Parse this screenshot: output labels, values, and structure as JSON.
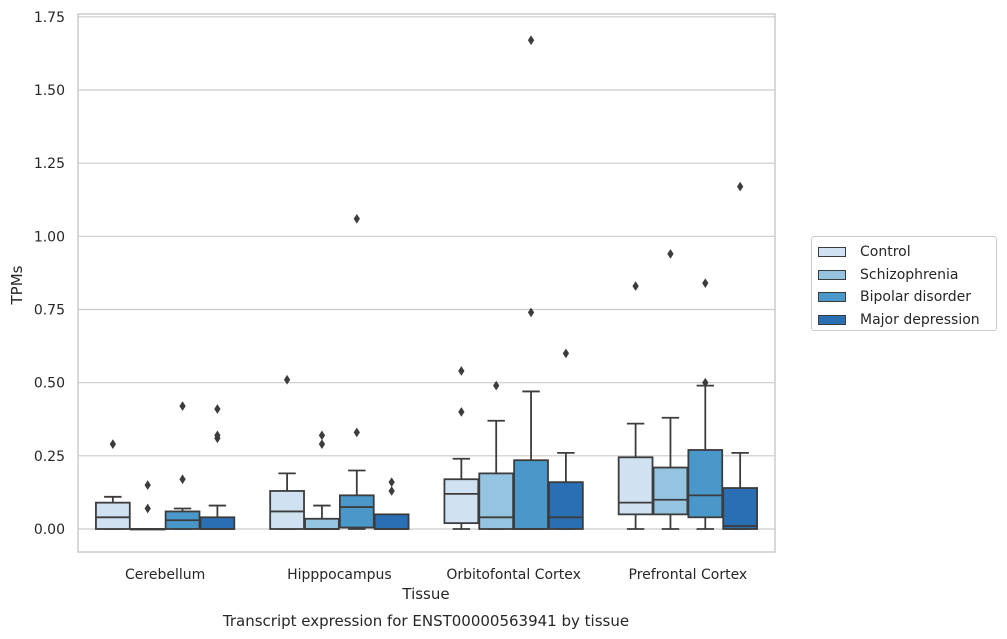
{
  "chart_data": {
    "type": "box",
    "title": "",
    "xlabel": "Tissue",
    "ylabel": "TPMs",
    "caption": "Transcript expression for ENST00000563941 by tissue",
    "categories": [
      "Cerebellum",
      "Hipppocampus",
      "Orbitofontal Cortex",
      "Prefrontal Cortex"
    ],
    "ylim": [
      -0.08,
      1.75
    ],
    "yticks": [
      0.0,
      0.25,
      0.5,
      0.75,
      1.0,
      1.25,
      1.5,
      1.75
    ],
    "ytick_labels": [
      "0.00",
      "0.25",
      "0.50",
      "0.75",
      "1.00",
      "1.25",
      "1.50",
      "1.75"
    ],
    "grid": true,
    "legend_position": "right",
    "series": [
      {
        "name": "Control",
        "color": "#d0e1f2",
        "boxes": [
          {
            "whisker_low": 0.0,
            "q1": 0.0,
            "median": 0.04,
            "q3": 0.09,
            "whisker_high": 0.11,
            "outliers": [
              0.29
            ]
          },
          {
            "whisker_low": 0.0,
            "q1": 0.0,
            "median": 0.06,
            "q3": 0.13,
            "whisker_high": 0.19,
            "outliers": [
              0.51
            ]
          },
          {
            "whisker_low": 0.0,
            "q1": 0.02,
            "median": 0.12,
            "q3": 0.17,
            "whisker_high": 0.24,
            "outliers": [
              0.4,
              0.54
            ]
          },
          {
            "whisker_low": 0.0,
            "q1": 0.05,
            "median": 0.09,
            "q3": 0.245,
            "whisker_high": 0.36,
            "outliers": [
              0.83
            ]
          }
        ]
      },
      {
        "name": "Schizophrenia",
        "color": "#94c4df",
        "boxes": [
          {
            "whisker_low": 0.0,
            "q1": 0.0,
            "median": 0.0,
            "q3": 0.0,
            "whisker_high": 0.0,
            "outliers": [
              0.07,
              0.15
            ]
          },
          {
            "whisker_low": 0.0,
            "q1": 0.0,
            "median": 0.0,
            "q3": 0.035,
            "whisker_high": 0.08,
            "outliers": [
              0.29,
              0.32
            ]
          },
          {
            "whisker_low": 0.0,
            "q1": 0.0,
            "median": 0.04,
            "q3": 0.19,
            "whisker_high": 0.37,
            "outliers": [
              0.49
            ]
          },
          {
            "whisker_low": 0.0,
            "q1": 0.05,
            "median": 0.1,
            "q3": 0.21,
            "whisker_high": 0.38,
            "outliers": [
              0.94
            ]
          }
        ]
      },
      {
        "name": "Bipolar disorder",
        "color": "#4a98c9",
        "boxes": [
          {
            "whisker_low": 0.0,
            "q1": 0.0,
            "median": 0.03,
            "q3": 0.06,
            "whisker_high": 0.07,
            "outliers": [
              0.17,
              0.42
            ]
          },
          {
            "whisker_low": 0.0,
            "q1": 0.005,
            "median": 0.075,
            "q3": 0.115,
            "whisker_high": 0.2,
            "outliers": [
              0.33,
              1.06
            ]
          },
          {
            "whisker_low": 0.0,
            "q1": 0.0,
            "median": 0.0,
            "q3": 0.235,
            "whisker_high": 0.47,
            "outliers": [
              0.74,
              1.67
            ]
          },
          {
            "whisker_low": 0.0,
            "q1": 0.04,
            "median": 0.115,
            "q3": 0.27,
            "whisker_high": 0.49,
            "outliers": [
              0.5,
              0.84
            ]
          }
        ]
      },
      {
        "name": "Major depression",
        "color": "#2a6fb3",
        "boxes": [
          {
            "whisker_low": 0.0,
            "q1": 0.0,
            "median": 0.0,
            "q3": 0.04,
            "whisker_high": 0.08,
            "outliers": [
              0.31,
              0.32,
              0.41
            ]
          },
          {
            "whisker_low": 0.0,
            "q1": 0.0,
            "median": 0.0,
            "q3": 0.05,
            "whisker_high": 0.05,
            "outliers": [
              0.13,
              0.16
            ]
          },
          {
            "whisker_low": 0.0,
            "q1": 0.0,
            "median": 0.04,
            "q3": 0.16,
            "whisker_high": 0.26,
            "outliers": [
              0.6
            ]
          },
          {
            "whisker_low": 0.0,
            "q1": 0.0,
            "median": 0.01,
            "q3": 0.14,
            "whisker_high": 0.26,
            "outliers": [
              1.17
            ]
          }
        ]
      }
    ]
  }
}
